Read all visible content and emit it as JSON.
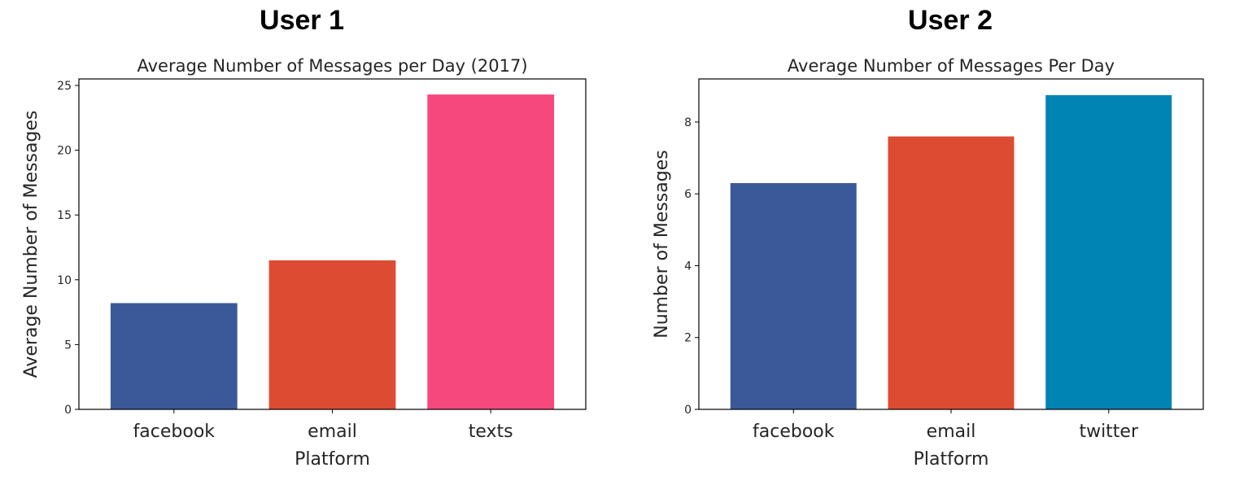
{
  "panels": [
    {
      "heading": "User 1"
    },
    {
      "heading": "User 2"
    }
  ],
  "chart_data": [
    {
      "type": "bar",
      "title": "Average Number of Messages per Day (2017)",
      "xlabel": "Platform",
      "ylabel": "Average Number of Messages",
      "categories": [
        "facebook",
        "email",
        "texts"
      ],
      "values": [
        8.2,
        11.5,
        24.3
      ],
      "colors": [
        "#3b5998",
        "#dd4b32",
        "#f7487d"
      ],
      "ylim": [
        0,
        25.5
      ],
      "yticks": [
        0,
        5,
        10,
        15,
        20,
        25
      ],
      "grid": false,
      "legend": false
    },
    {
      "type": "bar",
      "title": "Average Number of Messages Per Day",
      "xlabel": "Platform",
      "ylabel": "Number of Messages",
      "categories": [
        "facebook",
        "email",
        "twitter"
      ],
      "values": [
        6.3,
        7.6,
        8.75
      ],
      "colors": [
        "#3b5998",
        "#dd4b32",
        "#0084b4"
      ],
      "ylim": [
        0,
        9.2
      ],
      "yticks": [
        0,
        2,
        4,
        6,
        8
      ],
      "grid": false,
      "legend": false
    }
  ]
}
